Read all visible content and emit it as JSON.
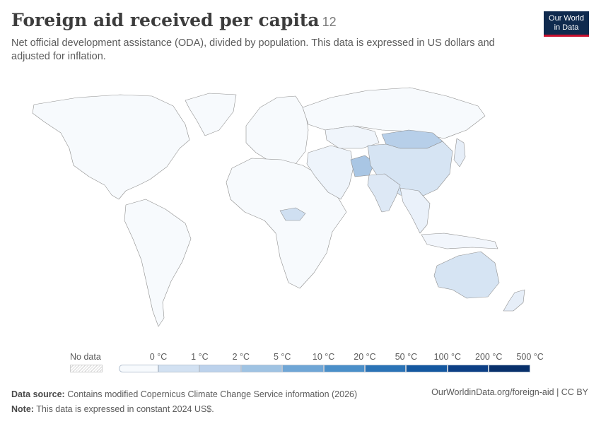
{
  "header": {
    "title": "Foreign aid received per capita",
    "title_count": "12",
    "subtitle": "Net official development assistance (ODA), divided by population. This data is expressed in US dollars and adjusted for inflation.",
    "logo_line1": "Our World",
    "logo_line2": "in Data"
  },
  "legend": {
    "no_data_label": "No data",
    "bins": [
      {
        "label": "0 °C",
        "color": "#eaf1fa"
      },
      {
        "label": "1 °C",
        "color": "#d2e1f2"
      },
      {
        "label": "2 °C",
        "color": "#bcd2ec"
      },
      {
        "label": "5 °C",
        "color": "#9fc3e3"
      },
      {
        "label": "10 °C",
        "color": "#6fa6d6"
      },
      {
        "label": "20 °C",
        "color": "#4a8fc9"
      },
      {
        "label": "50 °C",
        "color": "#2a73b6"
      },
      {
        "label": "100 °C",
        "color": "#1458a0"
      },
      {
        "label": "200 °C",
        "color": "#0c3f85"
      },
      {
        "label": "500 °C",
        "color": "#08306b"
      }
    ],
    "base_color": "#f7fafd"
  },
  "map": {
    "regions": [
      {
        "name": "North America",
        "fill": "#f7fafd"
      },
      {
        "name": "Greenland",
        "fill": "#f7fafd"
      },
      {
        "name": "South America",
        "fill": "#f7fafd"
      },
      {
        "name": "Europe",
        "fill": "#f7fafd"
      },
      {
        "name": "Africa",
        "fill": "#f7fafd"
      },
      {
        "name": "Russia",
        "fill": "#f7fafd"
      },
      {
        "name": "Middle East",
        "fill": "#eef4fb"
      },
      {
        "name": "China",
        "fill": "#d6e4f3"
      },
      {
        "name": "Mongolia",
        "fill": "#b7cfe9"
      },
      {
        "name": "Afghanistan",
        "fill": "#a9c6e4"
      },
      {
        "name": "Kazakhstan",
        "fill": "#f0f5fb"
      },
      {
        "name": "India",
        "fill": "#dde8f5"
      },
      {
        "name": "Southeast Asia",
        "fill": "#eaf1fa"
      },
      {
        "name": "Japan",
        "fill": "#e6eef8"
      },
      {
        "name": "Indonesia",
        "fill": "#f2f6fc"
      },
      {
        "name": "Australia",
        "fill": "#d6e4f3"
      },
      {
        "name": "New Zealand",
        "fill": "#e6eef8"
      },
      {
        "name": "Central African Republic",
        "fill": "#cfdff1"
      }
    ]
  },
  "footer": {
    "source_label": "Data source:",
    "source_text": "Contains modified Copernicus Climate Change Service information (2026)",
    "note_label": "Note:",
    "note_text": "This data is expressed in constant 2024 US$.",
    "url": "OurWorldinData.org/foreign-aid | CC BY"
  }
}
